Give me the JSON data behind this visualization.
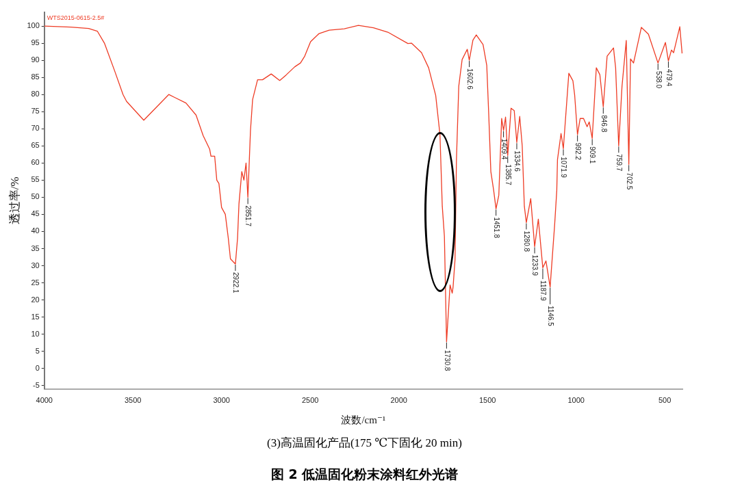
{
  "chart_data": {
    "type": "line",
    "title": "图 2  低温固化粉末涂料红外光谱",
    "xlabel": "波数/cm⁻¹",
    "ylabel": "透过率/%",
    "xlim": [
      4000,
      400
    ],
    "xticks": [
      4000,
      3500,
      3000,
      2500,
      2000,
      1500,
      1000,
      500
    ],
    "ylim": [
      -6,
      104
    ],
    "yticks": [
      -5,
      0,
      5,
      10,
      15,
      20,
      25,
      30,
      35,
      40,
      45,
      50,
      55,
      60,
      65,
      70,
      75,
      80,
      85,
      90,
      95,
      100
    ],
    "grid": false,
    "series": [
      {
        "color": "#ee3b24",
        "x": [
          4000,
          3850,
          3750,
          3701,
          3661,
          3604,
          3556,
          3536,
          3439,
          3298,
          3201,
          3144,
          3104,
          3067,
          3060,
          3039,
          3027,
          3015,
          3000,
          2979,
          2962,
          2950,
          2922.1,
          2910,
          2902,
          2886,
          2874,
          2862,
          2851.7,
          2837,
          2825,
          2797,
          2769,
          2720,
          2672,
          2636,
          2587,
          2555,
          2531,
          2498,
          2450,
          2393,
          2308,
          2228,
          2143,
          2062,
          1949,
          1929,
          1872,
          1832,
          1792,
          1768,
          1755,
          1743,
          1730.8,
          1711,
          1699,
          1694,
          1683,
          1675,
          1662,
          1643,
          1614,
          1602.6,
          1582,
          1563,
          1525,
          1504,
          1493,
          1481,
          1465,
          1451.8,
          1436,
          1420,
          1409.4,
          1398,
          1385.7,
          1367,
          1349,
          1334.6,
          1318,
          1304,
          1292,
          1280.8,
          1256,
          1233.9,
          1213,
          1187.9,
          1170,
          1146.5,
          1121,
          1109,
          1105,
          1085,
          1071.9,
          1041,
          1018,
          1008,
          992.2,
          977,
          958,
          938,
          926,
          909.1,
          886,
          866,
          846.8,
          825,
          789,
          777,
          759.7,
          741,
          717,
          702.5,
          693,
          676,
          632,
          592,
          538,
          496,
          479.4,
          462,
          450,
          415,
          402
        ],
        "values": [
          100,
          99.7,
          99.3,
          98.5,
          95,
          87,
          80,
          78,
          72.5,
          80,
          77.5,
          74,
          68,
          64,
          62,
          62,
          55,
          54,
          47,
          45,
          38,
          32,
          30.5,
          38,
          48,
          57.5,
          55,
          60,
          50,
          69.5,
          78.5,
          84.3,
          84.3,
          86,
          84.1,
          85.7,
          88.1,
          89.2,
          91.2,
          95.4,
          97.8,
          98.8,
          99.2,
          100.2,
          99.5,
          98.2,
          94.9,
          95,
          92.2,
          87.8,
          79.7,
          68.3,
          47.4,
          38.6,
          7.8,
          24.4,
          22,
          23.8,
          31.8,
          60.9,
          82.4,
          90.2,
          93.2,
          90,
          95.9,
          97.4,
          94.6,
          88.5,
          74.4,
          57.5,
          52,
          46.6,
          50.6,
          73,
          69.5,
          73.4,
          62.2,
          76,
          75.3,
          66,
          73.6,
          65,
          47.4,
          42.6,
          49.6,
          35.6,
          43.6,
          29.4,
          31.4,
          23.8,
          42,
          52,
          61,
          68.6,
          64.2,
          86.2,
          84,
          79.8,
          68.3,
          73,
          73,
          70.6,
          72,
          67.2,
          87.8,
          85.8,
          76.4,
          91.2,
          93.6,
          87.8,
          65,
          82.4,
          95.8,
          59.6,
          90.4,
          89.2,
          99.6,
          97.6,
          89.2,
          95.2,
          89.8,
          93,
          92.2,
          99.8,
          92
        ]
      }
    ],
    "annotations": [
      "WTS2015-0615-2.5#",
      "(3)高温固化产品(175 ℃下固化 20 min)",
      {
        "text": "2922.1",
        "x": 2922.1,
        "y": 30.5
      },
      {
        "text": "2851.7",
        "x": 2851.7,
        "y": 50
      },
      {
        "text": "1730.8",
        "x": 1730.8,
        "y": 7.8
      },
      {
        "text": "1602.6",
        "x": 1602.6,
        "y": 90
      },
      {
        "text": "1451.8",
        "x": 1451.8,
        "y": 46.6
      },
      {
        "text": "1409.4",
        "x": 1409.4,
        "y": 69.5
      },
      {
        "text": "1385.7",
        "x": 1385.7,
        "y": 62.2
      },
      {
        "text": "1334.6",
        "x": 1334.6,
        "y": 66
      },
      {
        "text": "1280.8",
        "x": 1280.8,
        "y": 42.6
      },
      {
        "text": "1233.9",
        "x": 1233.9,
        "y": 35.6
      },
      {
        "text": "1187.9",
        "x": 1187.9,
        "y": 29.4
      },
      {
        "text": "1146.5",
        "x": 1146.5,
        "y": 23.8
      },
      {
        "text": "1071.9",
        "x": 1071.9,
        "y": 64.2
      },
      {
        "text": "992.2",
        "x": 992.2,
        "y": 68.3
      },
      {
        "text": "909.1",
        "x": 909.1,
        "y": 67.2
      },
      {
        "text": "846.8",
        "x": 846.8,
        "y": 76.4
      },
      {
        "text": "759.7",
        "x": 759.7,
        "y": 65
      },
      {
        "text": "702.5",
        "x": 702.5,
        "y": 59.6
      },
      {
        "text": "538.0",
        "x": 538,
        "y": 89.2
      },
      {
        "text": "479.4",
        "x": 479.4,
        "y": 89.8
      }
    ]
  }
}
